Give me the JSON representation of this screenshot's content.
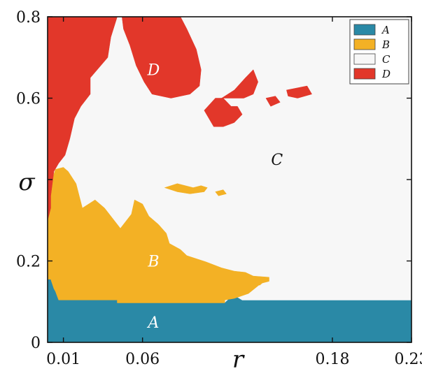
{
  "chart_data": {
    "type": "heatmap",
    "title": "",
    "xlabel": "r",
    "ylabel": "σ",
    "xlim": [
      0.0,
      0.23
    ],
    "ylim": [
      0,
      0.8
    ],
    "x_ticks": [
      {
        "value": 0.01,
        "label": "0.01"
      },
      {
        "value": 0.06,
        "label": "0.06"
      },
      {
        "value": 0.18,
        "label": "0.18"
      },
      {
        "value": 0.23,
        "label": "0.23"
      }
    ],
    "y_ticks": [
      {
        "value": 0,
        "label": "0"
      },
      {
        "value": 0.2,
        "label": "0.2"
      },
      {
        "value": 0.4,
        "label": ""
      },
      {
        "value": 0.6,
        "label": "0.6"
      },
      {
        "value": 0.8,
        "label": "0.8"
      }
    ],
    "categories": [
      {
        "key": "A",
        "label": "A",
        "color": "#2a89a6"
      },
      {
        "key": "B",
        "label": "B",
        "color": "#f3b125"
      },
      {
        "key": "C",
        "label": "C",
        "color": "#f7f7f7"
      },
      {
        "key": "D",
        "label": "D",
        "color": "#e2372a"
      }
    ],
    "region_labels": [
      {
        "label": "A",
        "x": 0.067,
        "y": 0.05,
        "color": "#ffffff"
      },
      {
        "label": "B",
        "x": 0.067,
        "y": 0.2,
        "color": "#ffffff"
      },
      {
        "label": "C",
        "x": 0.145,
        "y": 0.45,
        "color": "#111111"
      },
      {
        "label": "D",
        "x": 0.067,
        "y": 0.67,
        "color": "#ffffff"
      }
    ],
    "legend_position": "top-right",
    "regions": [
      {
        "category": "A",
        "boundary": [
          [
            0.0,
            0.0
          ],
          [
            0.23,
            0.0
          ],
          [
            0.23,
            0.103
          ],
          [
            0.123,
            0.103
          ],
          [
            0.12,
            0.11
          ],
          [
            0.115,
            0.108
          ],
          [
            0.112,
            0.097
          ],
          [
            0.044,
            0.097
          ],
          [
            0.044,
            0.104
          ],
          [
            0.007,
            0.104
          ],
          [
            0.005,
            0.125
          ],
          [
            0.004,
            0.132
          ],
          [
            0.002,
            0.155
          ],
          [
            0.0,
            0.155
          ]
        ]
      },
      {
        "category": "B",
        "boundary": [
          [
            0.0,
            0.155
          ],
          [
            0.002,
            0.155
          ],
          [
            0.004,
            0.132
          ],
          [
            0.005,
            0.125
          ],
          [
            0.007,
            0.104
          ],
          [
            0.044,
            0.104
          ],
          [
            0.044,
            0.097
          ],
          [
            0.112,
            0.097
          ],
          [
            0.112,
            0.104
          ],
          [
            0.118,
            0.108
          ],
          [
            0.127,
            0.12
          ],
          [
            0.135,
            0.145
          ],
          [
            0.14,
            0.15
          ],
          [
            0.14,
            0.16
          ],
          [
            0.13,
            0.163
          ],
          [
            0.125,
            0.172
          ],
          [
            0.118,
            0.175
          ],
          [
            0.11,
            0.183
          ],
          [
            0.1,
            0.198
          ],
          [
            0.088,
            0.213
          ],
          [
            0.084,
            0.228
          ],
          [
            0.077,
            0.243
          ],
          [
            0.075,
            0.268
          ],
          [
            0.07,
            0.29
          ],
          [
            0.064,
            0.31
          ],
          [
            0.06,
            0.34
          ],
          [
            0.055,
            0.35
          ],
          [
            0.053,
            0.315
          ],
          [
            0.05,
            0.3
          ],
          [
            0.046,
            0.28
          ],
          [
            0.042,
            0.3
          ],
          [
            0.036,
            0.33
          ],
          [
            0.03,
            0.35
          ],
          [
            0.022,
            0.33
          ],
          [
            0.02,
            0.36
          ],
          [
            0.018,
            0.39
          ],
          [
            0.013,
            0.42
          ],
          [
            0.01,
            0.43
          ],
          [
            0.005,
            0.425
          ],
          [
            0.002,
            0.39
          ],
          [
            0.0,
            0.35
          ]
        ]
      },
      {
        "category": "D",
        "boundary": [
          [
            0.0,
            0.3
          ],
          [
            0.002,
            0.33
          ],
          [
            0.002,
            0.36
          ],
          [
            0.004,
            0.42
          ],
          [
            0.007,
            0.44
          ],
          [
            0.011,
            0.46
          ],
          [
            0.014,
            0.5
          ],
          [
            0.017,
            0.55
          ],
          [
            0.021,
            0.58
          ],
          [
            0.027,
            0.61
          ],
          [
            0.027,
            0.65
          ],
          [
            0.038,
            0.7
          ],
          [
            0.04,
            0.75
          ],
          [
            0.044,
            0.8
          ],
          [
            0.0,
            0.8
          ]
        ]
      },
      {
        "category": "D",
        "boundary": [
          [
            0.047,
            0.8
          ],
          [
            0.084,
            0.8
          ],
          [
            0.088,
            0.77
          ],
          [
            0.094,
            0.72
          ],
          [
            0.097,
            0.67
          ],
          [
            0.096,
            0.63
          ],
          [
            0.09,
            0.61
          ],
          [
            0.078,
            0.6
          ],
          [
            0.066,
            0.61
          ],
          [
            0.061,
            0.64
          ],
          [
            0.056,
            0.68
          ],
          [
            0.052,
            0.73
          ],
          [
            0.048,
            0.77
          ]
        ]
      },
      {
        "category": "D",
        "boundary": [
          [
            0.099,
            0.57
          ],
          [
            0.106,
            0.6
          ],
          [
            0.111,
            0.6
          ],
          [
            0.116,
            0.58
          ],
          [
            0.12,
            0.58
          ],
          [
            0.123,
            0.56
          ],
          [
            0.118,
            0.54
          ],
          [
            0.111,
            0.53
          ],
          [
            0.105,
            0.53
          ]
        ]
      },
      {
        "category": "D",
        "boundary": [
          [
            0.11,
            0.6
          ],
          [
            0.118,
            0.62
          ],
          [
            0.125,
            0.65
          ],
          [
            0.13,
            0.67
          ],
          [
            0.133,
            0.64
          ],
          [
            0.13,
            0.61
          ],
          [
            0.124,
            0.6
          ]
        ]
      },
      {
        "category": "D",
        "boundary": [
          [
            0.138,
            0.6
          ],
          [
            0.144,
            0.605
          ],
          [
            0.147,
            0.59
          ],
          [
            0.141,
            0.58
          ]
        ]
      },
      {
        "category": "D",
        "boundary": [
          [
            0.151,
            0.62
          ],
          [
            0.164,
            0.63
          ],
          [
            0.167,
            0.61
          ],
          [
            0.158,
            0.6
          ],
          [
            0.152,
            0.605
          ]
        ]
      },
      {
        "category": "B",
        "boundary": [
          [
            0.074,
            0.38
          ],
          [
            0.082,
            0.39
          ],
          [
            0.092,
            0.38
          ],
          [
            0.097,
            0.385
          ],
          [
            0.101,
            0.38
          ],
          [
            0.099,
            0.37
          ],
          [
            0.09,
            0.365
          ],
          [
            0.082,
            0.37
          ]
        ]
      },
      {
        "category": "B",
        "boundary": [
          [
            0.106,
            0.37
          ],
          [
            0.111,
            0.375
          ],
          [
            0.113,
            0.365
          ],
          [
            0.108,
            0.36
          ]
        ]
      },
      {
        "category": "B",
        "boundary": [
          [
            0.13,
            0.155
          ],
          [
            0.137,
            0.15
          ],
          [
            0.134,
            0.14
          ]
        ]
      }
    ]
  }
}
